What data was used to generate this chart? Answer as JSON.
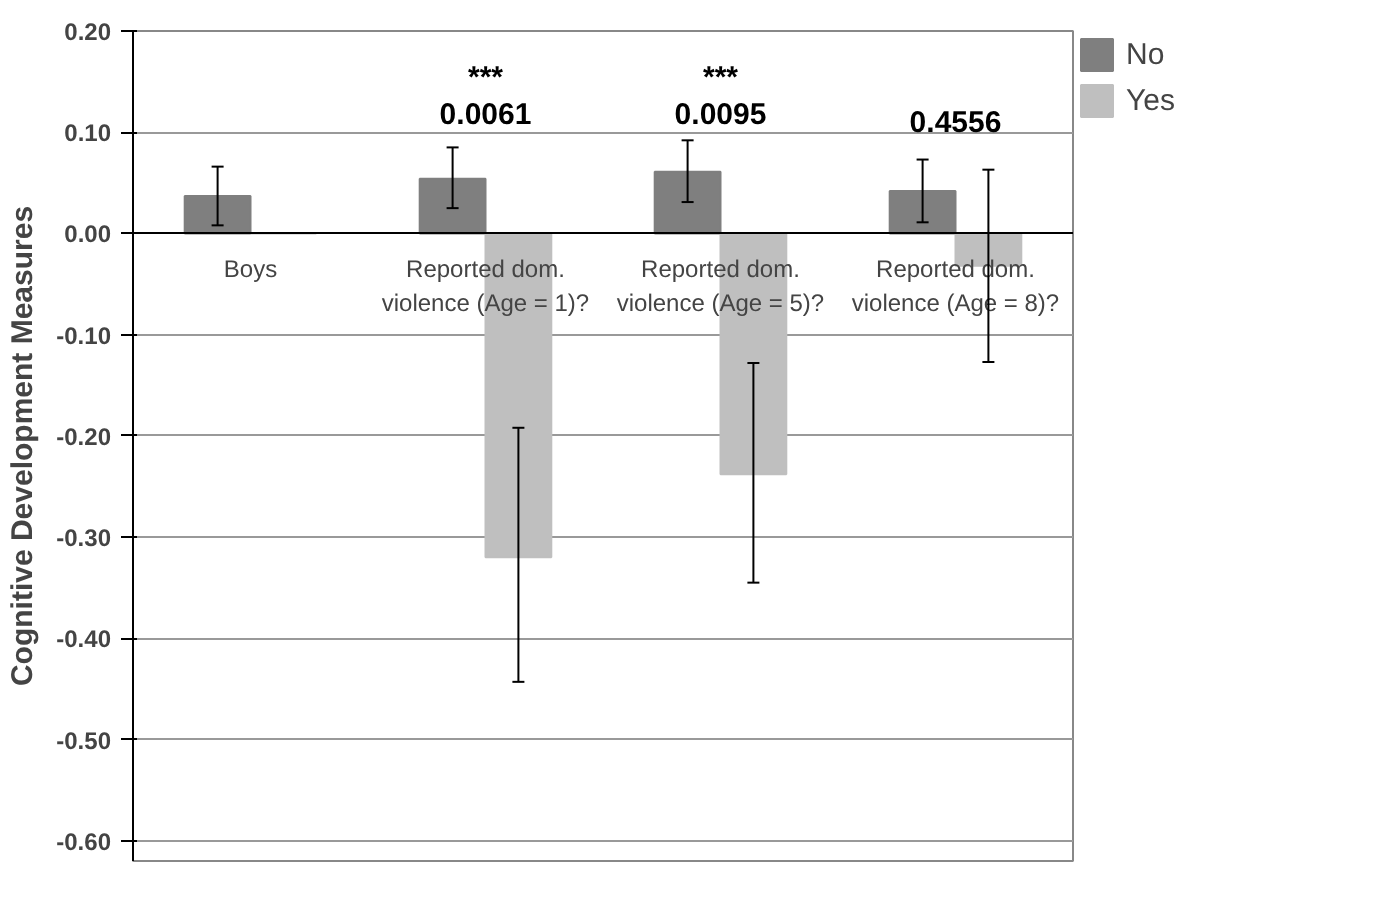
{
  "chart_data": {
    "type": "bar",
    "ylabel": "Cognitive Development Measures",
    "categories": [
      "Boys",
      "Reported dom. violence (Age = 1)?",
      "Reported dom. violence (Age = 5)?",
      "Reported dom. violence (Age = 8)?"
    ],
    "series": [
      {
        "name": "No",
        "color": "#7f7f7f",
        "values": [
          0.037,
          0.054,
          0.061,
          0.042
        ],
        "errors": [
          [
            0.008,
            0.066
          ],
          [
            0.025,
            0.085
          ],
          [
            0.031,
            0.092
          ],
          [
            0.011,
            0.073
          ]
        ]
      },
      {
        "name": "Yes",
        "color": "#bfbfbf",
        "values": [
          0.0,
          -0.32,
          -0.238,
          -0.032
        ],
        "errors": [
          null,
          [
            -0.443,
            -0.192
          ],
          [
            -0.345,
            -0.128
          ],
          [
            -0.127,
            0.063
          ]
        ]
      }
    ],
    "ylim": [
      -0.62,
      0.2
    ],
    "yticks": [
      {
        "value": -0.6,
        "label": "-0.60"
      },
      {
        "value": -0.5,
        "label": "-0.50"
      },
      {
        "value": -0.4,
        "label": "-0.40"
      },
      {
        "value": -0.3,
        "label": "-0.30"
      },
      {
        "value": -0.2,
        "label": "-0.20"
      },
      {
        "value": -0.1,
        "label": "-0.10"
      },
      {
        "value": 0,
        "label": "0.00"
      },
      {
        "value": 0.1,
        "label": "0.10"
      },
      {
        "value": 0.2,
        "label": "0.20"
      }
    ],
    "grid": "y",
    "legend": "right",
    "annotations": [
      "***\n0.0061",
      "***\n0.0095",
      "0.4556"
    ]
  }
}
